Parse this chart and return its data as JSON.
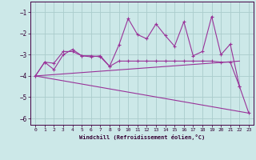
{
  "xlabel": "Windchill (Refroidissement éolien,°C)",
  "background_color": "#cce8e8",
  "grid_color": "#aacccc",
  "line_color": "#993399",
  "xlim": [
    -0.5,
    23.5
  ],
  "ylim": [
    -6.3,
    -0.5
  ],
  "xticks": [
    0,
    1,
    2,
    3,
    4,
    5,
    6,
    7,
    8,
    9,
    10,
    11,
    12,
    13,
    14,
    15,
    16,
    17,
    18,
    19,
    20,
    21,
    22,
    23
  ],
  "yticks": [
    -6,
    -5,
    -4,
    -3,
    -2,
    -1
  ],
  "series": [
    {
      "name": "zigzag_with_markers",
      "points": [
        [
          0,
          -4.0
        ],
        [
          1,
          -3.35
        ],
        [
          2,
          -3.7
        ],
        [
          3,
          -3.0
        ],
        [
          4,
          -2.75
        ],
        [
          5,
          -3.05
        ],
        [
          6,
          -3.05
        ],
        [
          7,
          -3.1
        ],
        [
          8,
          -3.55
        ],
        [
          9,
          -2.55
        ],
        [
          10,
          -1.3
        ],
        [
          11,
          -2.05
        ],
        [
          12,
          -2.25
        ],
        [
          13,
          -1.55
        ],
        [
          14,
          -2.1
        ],
        [
          15,
          -2.6
        ],
        [
          16,
          -1.45
        ],
        [
          17,
          -3.05
        ],
        [
          18,
          -2.85
        ],
        [
          19,
          -1.2
        ],
        [
          20,
          -3.0
        ],
        [
          21,
          -2.5
        ],
        [
          22,
          -4.5
        ],
        [
          23,
          -5.75
        ]
      ],
      "marker": true
    },
    {
      "name": "smoother_with_markers",
      "points": [
        [
          0,
          -4.0
        ],
        [
          1,
          -3.35
        ],
        [
          2,
          -3.4
        ],
        [
          3,
          -2.85
        ],
        [
          4,
          -2.85
        ],
        [
          5,
          -3.05
        ],
        [
          6,
          -3.1
        ],
        [
          7,
          -3.05
        ],
        [
          8,
          -3.55
        ],
        [
          9,
          -3.3
        ],
        [
          10,
          -3.3
        ],
        [
          11,
          -3.3
        ],
        [
          12,
          -3.3
        ],
        [
          13,
          -3.3
        ],
        [
          14,
          -3.3
        ],
        [
          15,
          -3.3
        ],
        [
          16,
          -3.3
        ],
        [
          17,
          -3.3
        ],
        [
          18,
          -3.3
        ],
        [
          19,
          -3.3
        ],
        [
          20,
          -3.35
        ],
        [
          21,
          -3.35
        ],
        [
          22,
          -4.5
        ]
      ],
      "marker": true
    },
    {
      "name": "diagonal_up",
      "points": [
        [
          0,
          -4.0
        ],
        [
          22,
          -3.3
        ]
      ],
      "marker": false
    },
    {
      "name": "diagonal_down",
      "points": [
        [
          0,
          -4.0
        ],
        [
          23,
          -5.75
        ]
      ],
      "marker": false
    }
  ]
}
